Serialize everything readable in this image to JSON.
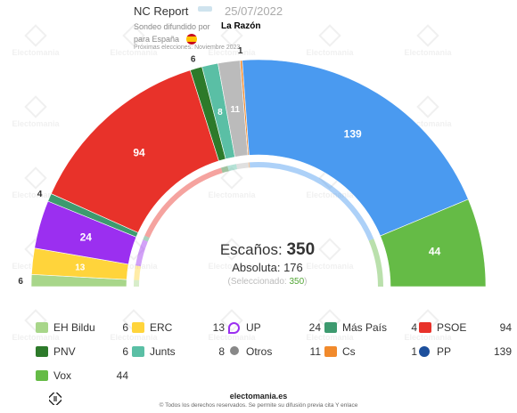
{
  "header": {
    "pollster": "NC Report",
    "date": "25/07/2022",
    "sondeo_label": "Sondeo difundido por",
    "media": "La Razón",
    "region": "para España",
    "next_elections": "Próximas elecciones: Noviembre 2023"
  },
  "watermark": "Electomania",
  "center": {
    "seats_label": "Escaños:",
    "seats_total": "350",
    "majority_label": "Absoluta:",
    "majority_value": "176",
    "selected_prefix": "(Seleccionado: ",
    "selected_value": "350",
    "selected_suffix": ")"
  },
  "chart_data": {
    "type": "pie",
    "subtype": "hemicycle",
    "total_seats": 350,
    "majority": 176,
    "selected": 350,
    "series": [
      {
        "name": "EH Bildu",
        "value": 6,
        "color": "#a8d68a"
      },
      {
        "name": "Vox",
        "value": 44,
        "color": "#65bb46"
      },
      {
        "name": "ERC",
        "value": 13,
        "color": "#ffd43b"
      },
      {
        "name": "UP",
        "value": 24,
        "color": "#9b2ff0"
      },
      {
        "name": "Más País",
        "value": 4,
        "color": "#3d9a6f"
      },
      {
        "name": "PSOE",
        "value": 94,
        "color": "#e8322a"
      },
      {
        "name": "PNV",
        "value": 6,
        "color": "#2d7a2a"
      },
      {
        "name": "Junts",
        "value": 8,
        "color": "#5abfa5"
      },
      {
        "name": "Otros",
        "value": 11,
        "color": "#bbbbbb"
      },
      {
        "name": "Cs",
        "value": 1,
        "color": "#f18a2c"
      },
      {
        "name": "PP",
        "value": 139,
        "color": "#4a9af0"
      }
    ],
    "arc_order": [
      "EH Bildu",
      "ERC",
      "UP",
      "Más País",
      "PSOE",
      "PNV",
      "Junts",
      "Otros",
      "Cs",
      "PP",
      "Vox"
    ],
    "arc_labels": [
      "6",
      "13",
      "24",
      "4",
      "94",
      "6",
      "8",
      "11",
      "1",
      "139",
      "44"
    ]
  },
  "legend": [
    {
      "name": "EH Bildu",
      "seats": "6",
      "color": "#a8d68a",
      "icon": "eh-bildu-logo"
    },
    {
      "name": "ERC",
      "seats": "13",
      "color": "#ffd43b",
      "icon": "erc-logo"
    },
    {
      "name": "UP",
      "seats": "24",
      "color": "#9b2ff0",
      "icon": "up-heart-logo"
    },
    {
      "name": "Más País",
      "seats": "4",
      "color": "#3d9a6f",
      "icon": "mas-pais-logo"
    },
    {
      "name": "PSOE",
      "seats": "94",
      "color": "#e8322a",
      "icon": "psoe-logo"
    },
    {
      "name": "PNV",
      "seats": "6",
      "color": "#2d7a2a",
      "icon": "pnv-logo"
    },
    {
      "name": "Junts",
      "seats": "8",
      "color": "#5abfa5",
      "icon": "junts-logo"
    },
    {
      "name": "Otros",
      "seats": "11",
      "color": "#888888",
      "icon": "otros-dot"
    },
    {
      "name": "Cs",
      "seats": "1",
      "color": "#f18a2c",
      "icon": "cs-logo"
    },
    {
      "name": "PP",
      "seats": "139",
      "color": "#1d4f9c",
      "icon": "pp-logo"
    },
    {
      "name": "Vox",
      "seats": "44",
      "color": "#65bb46",
      "icon": "vox-logo"
    }
  ],
  "footer": {
    "brand": "electomania.es",
    "copyright": "© Todos los derechos reservados. Se permite su difusión previa cita Y enlace"
  }
}
